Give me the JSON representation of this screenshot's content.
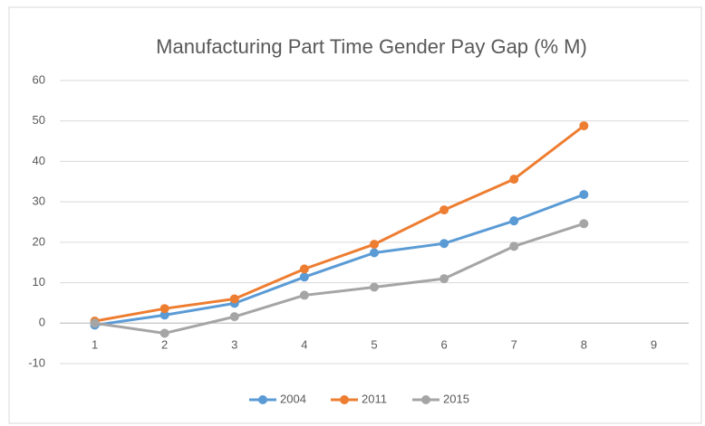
{
  "chart_data": {
    "type": "line",
    "title": "Manufacturing Part Time Gender Pay Gap (% M)",
    "categories": [
      "1",
      "2",
      "3",
      "4",
      "5",
      "6",
      "7",
      "8",
      "9"
    ],
    "series": [
      {
        "name": "2004",
        "color": "#5b9bd5",
        "values": [
          -0.5,
          2,
          4.9,
          11.4,
          17.4,
          19.7,
          25.3,
          31.8,
          null
        ]
      },
      {
        "name": "2011",
        "color": "#ed7d31",
        "values": [
          0.5,
          3.6,
          6,
          13.4,
          19.5,
          28,
          35.6,
          48.8,
          null
        ]
      },
      {
        "name": "2015",
        "color": "#a5a5a5",
        "values": [
          0,
          -2.5,
          1.6,
          6.9,
          8.9,
          11,
          19,
          24.6,
          null
        ]
      }
    ],
    "ylim": [
      -10,
      60
    ],
    "yticks": [
      -10,
      0,
      10,
      20,
      30,
      40,
      50,
      60
    ],
    "grid": true,
    "legend": "bottom"
  }
}
